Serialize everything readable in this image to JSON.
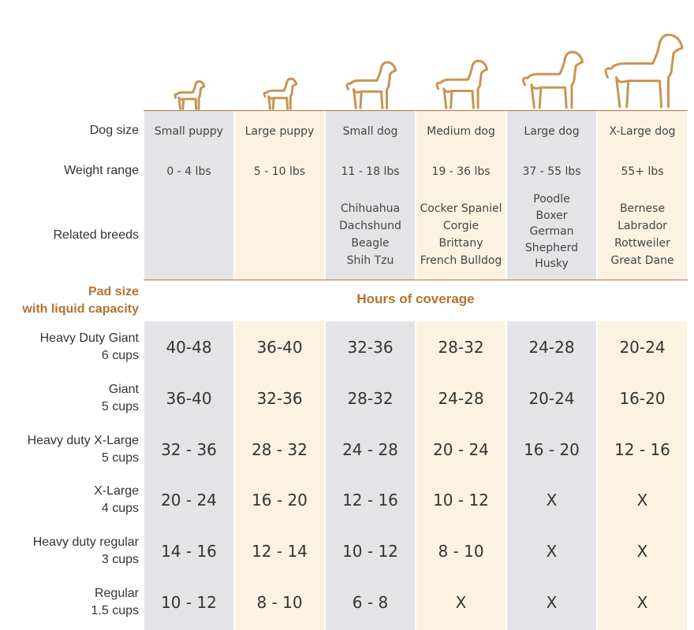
{
  "header_rows": [
    {
      "label": "Dog size",
      "cells": [
        "Small puppy",
        "Large puppy",
        "Small dog",
        "Medium dog",
        "Large dog",
        "X-Large dog"
      ]
    },
    {
      "label": "Weight range",
      "cells": [
        "0 - 4 lbs",
        "5 - 10 lbs",
        "11 - 18 lbs",
        "19 - 36 lbs",
        "37 - 55 lbs",
        "55+ lbs"
      ]
    },
    {
      "label": "Related breeds",
      "cells": [
        [],
        [],
        [
          "Chihuahua",
          "Dachshund",
          "Beagle",
          "Shih Tzu"
        ],
        [
          "Cocker Spaniel",
          "Corgie",
          "Brittany",
          "French Bulldog"
        ],
        [
          "Poodle",
          "Boxer",
          "German",
          "Shepherd",
          "Husky"
        ],
        [
          "Bernese",
          "Labrador",
          "Rottweiler",
          "Great Dane"
        ]
      ]
    }
  ],
  "pad_header": {
    "label": [
      "Pad size",
      "with liquid capacity"
    ],
    "title": "Hours of coverage"
  },
  "pads": [
    {
      "name": "Heavy Duty Giant",
      "capacity": "6 cups",
      "hours": [
        "40-48",
        "36-40",
        "32-36",
        "28-32",
        "24-28",
        "20-24"
      ]
    },
    {
      "name": "Giant",
      "capacity": "5 cups",
      "hours": [
        "36-40",
        "32-36",
        "28-32",
        "24-28",
        "20-24",
        "16-20"
      ]
    },
    {
      "name": "Heavy duty X-Large",
      "capacity": "5 cups",
      "hours": [
        "32 - 36",
        "28 - 32",
        "24 - 28",
        "20 - 24",
        "16 - 20",
        "12 - 16"
      ]
    },
    {
      "name": "X-Large",
      "capacity": "4 cups",
      "hours": [
        "20 - 24",
        "16 - 20",
        "12 - 16",
        "10 - 12",
        "X",
        "X"
      ]
    },
    {
      "name": "Heavy duty regular",
      "capacity": "3 cups",
      "hours": [
        "14 - 16",
        "12 - 14",
        "10 - 12",
        "8 - 10",
        "X",
        "X"
      ]
    },
    {
      "name": "Regular",
      "capacity": "1.5 cups",
      "hours": [
        "10 - 12",
        "8 - 10",
        "6 - 8",
        "X",
        "X",
        "X"
      ]
    }
  ]
}
